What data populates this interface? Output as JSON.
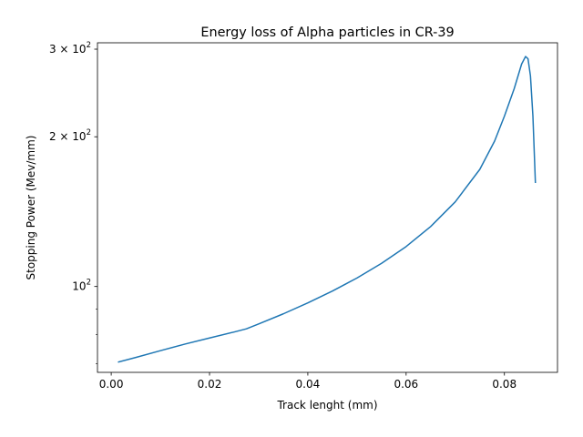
{
  "chart_data": {
    "type": "line",
    "title": "Energy loss of Alpha particles in CR-39",
    "xlabel": "Track lenght (mm)",
    "ylabel": "Stopping Power (Mev/mm)",
    "yscale": "log",
    "grid": false,
    "xlim": [
      -0.0028,
      0.0908
    ],
    "ylim": [
      67.2,
      309
    ],
    "x_ticks": [
      {
        "value": 0.0,
        "label": "0.00"
      },
      {
        "value": 0.02,
        "label": "0.02"
      },
      {
        "value": 0.04,
        "label": "0.04"
      },
      {
        "value": 0.06,
        "label": "0.06"
      },
      {
        "value": 0.08,
        "label": "0.08"
      }
    ],
    "y_major_ticks": [
      {
        "value": 100,
        "base": "10",
        "exp": "2",
        "mantissa": ""
      },
      {
        "value": 200,
        "base": "10",
        "exp": "2",
        "mantissa": "2 × "
      },
      {
        "value": 300,
        "base": "10",
        "exp": "2",
        "mantissa": "3 × "
      }
    ],
    "y_minor_ticks": [
      70,
      80,
      90,
      400
    ],
    "series": [
      {
        "color": "#1f77b4",
        "x": [
          0.0015,
          0.005,
          0.01,
          0.015,
          0.02,
          0.025,
          0.0275,
          0.03,
          0.035,
          0.04,
          0.045,
          0.05,
          0.055,
          0.06,
          0.065,
          0.07,
          0.075,
          0.078,
          0.08,
          0.082,
          0.0835,
          0.0843,
          0.0848,
          0.0853,
          0.0858,
          0.0863
        ],
        "y": [
          70.5,
          72.0,
          74.3,
          76.6,
          78.8,
          81.0,
          82.2,
          84.1,
          88.1,
          92.7,
          97.9,
          104.0,
          111.3,
          120.3,
          132.0,
          148.0,
          172.0,
          196.0,
          220.0,
          250.0,
          280.0,
          290.0,
          287.0,
          265.0,
          220.0,
          162.0
        ]
      }
    ]
  }
}
